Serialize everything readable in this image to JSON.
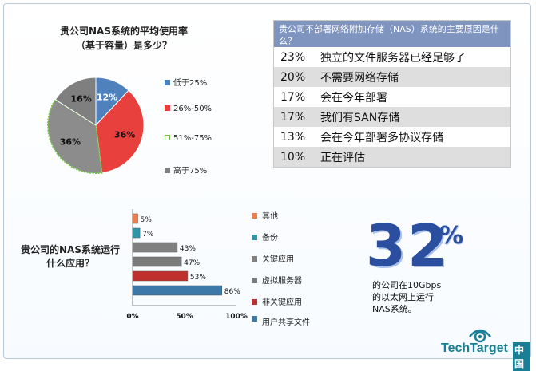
{
  "pie_chart": {
    "title_line1": "贵公司NAS系统的平均使用率",
    "title_line2": "（基于容量）是多少？"
  },
  "reasons_table": {
    "header": "贵公司不部署网络附加存储（NAS）系统的主要原因是什么？",
    "rows": [
      {
        "pct": "23%",
        "text": "独立的文件服务器已经足够了"
      },
      {
        "pct": "20%",
        "text": "不需要网络存储"
      },
      {
        "pct": "17%",
        "text": "会在今年部署"
      },
      {
        "pct": "17%",
        "text": "我们有SAN存储"
      },
      {
        "pct": "13%",
        "text": "会在今年部署多协议存储"
      },
      {
        "pct": "10%",
        "text": "正在评估"
      }
    ]
  },
  "bar_chart": {
    "question_line1": "贵公司的NAS系统运行",
    "question_line2": "什么应用？"
  },
  "stat": {
    "number": "32",
    "percent_sign": "%",
    "line1": "的公司在10Gbps",
    "line2": "的以太网上运行",
    "line3": "NAS系统。"
  },
  "logo": {
    "brand": "TechTarget",
    "region": "中国"
  },
  "chart_data": [
    {
      "type": "pie",
      "title": "贵公司NAS系统的平均使用率（基于容量）是多少？",
      "categories": [
        "低于25%",
        "26%-50%",
        "51%-75%",
        "高于75%"
      ],
      "values": [
        12,
        36,
        36,
        16
      ],
      "labels": [
        "12%",
        "36%",
        "36%",
        "16%"
      ],
      "colors": [
        "#4f81bd",
        "#e8403c",
        "#8c8c8c",
        "#7f7f7f"
      ],
      "legend": "right"
    },
    {
      "type": "bar",
      "orientation": "horizontal",
      "title": "贵公司的NAS系统运行什么应用？",
      "categories": [
        "其他",
        "备份",
        "关键应用",
        "虚拟服务器",
        "非关键应用",
        "用户共享文件"
      ],
      "values": [
        5,
        7,
        43,
        47,
        53,
        86
      ],
      "labels": [
        "5%",
        "7%",
        "43%",
        "47%",
        "53%",
        "86%"
      ],
      "colors": [
        "#f07c4a",
        "#2e96a8",
        "#808080",
        "#7a7a7a",
        "#c0302c",
        "#3c78a8"
      ],
      "xlim": [
        0,
        100
      ],
      "xticks": [
        "0%",
        "50%",
        "100%"
      ],
      "legend": "right"
    }
  ]
}
